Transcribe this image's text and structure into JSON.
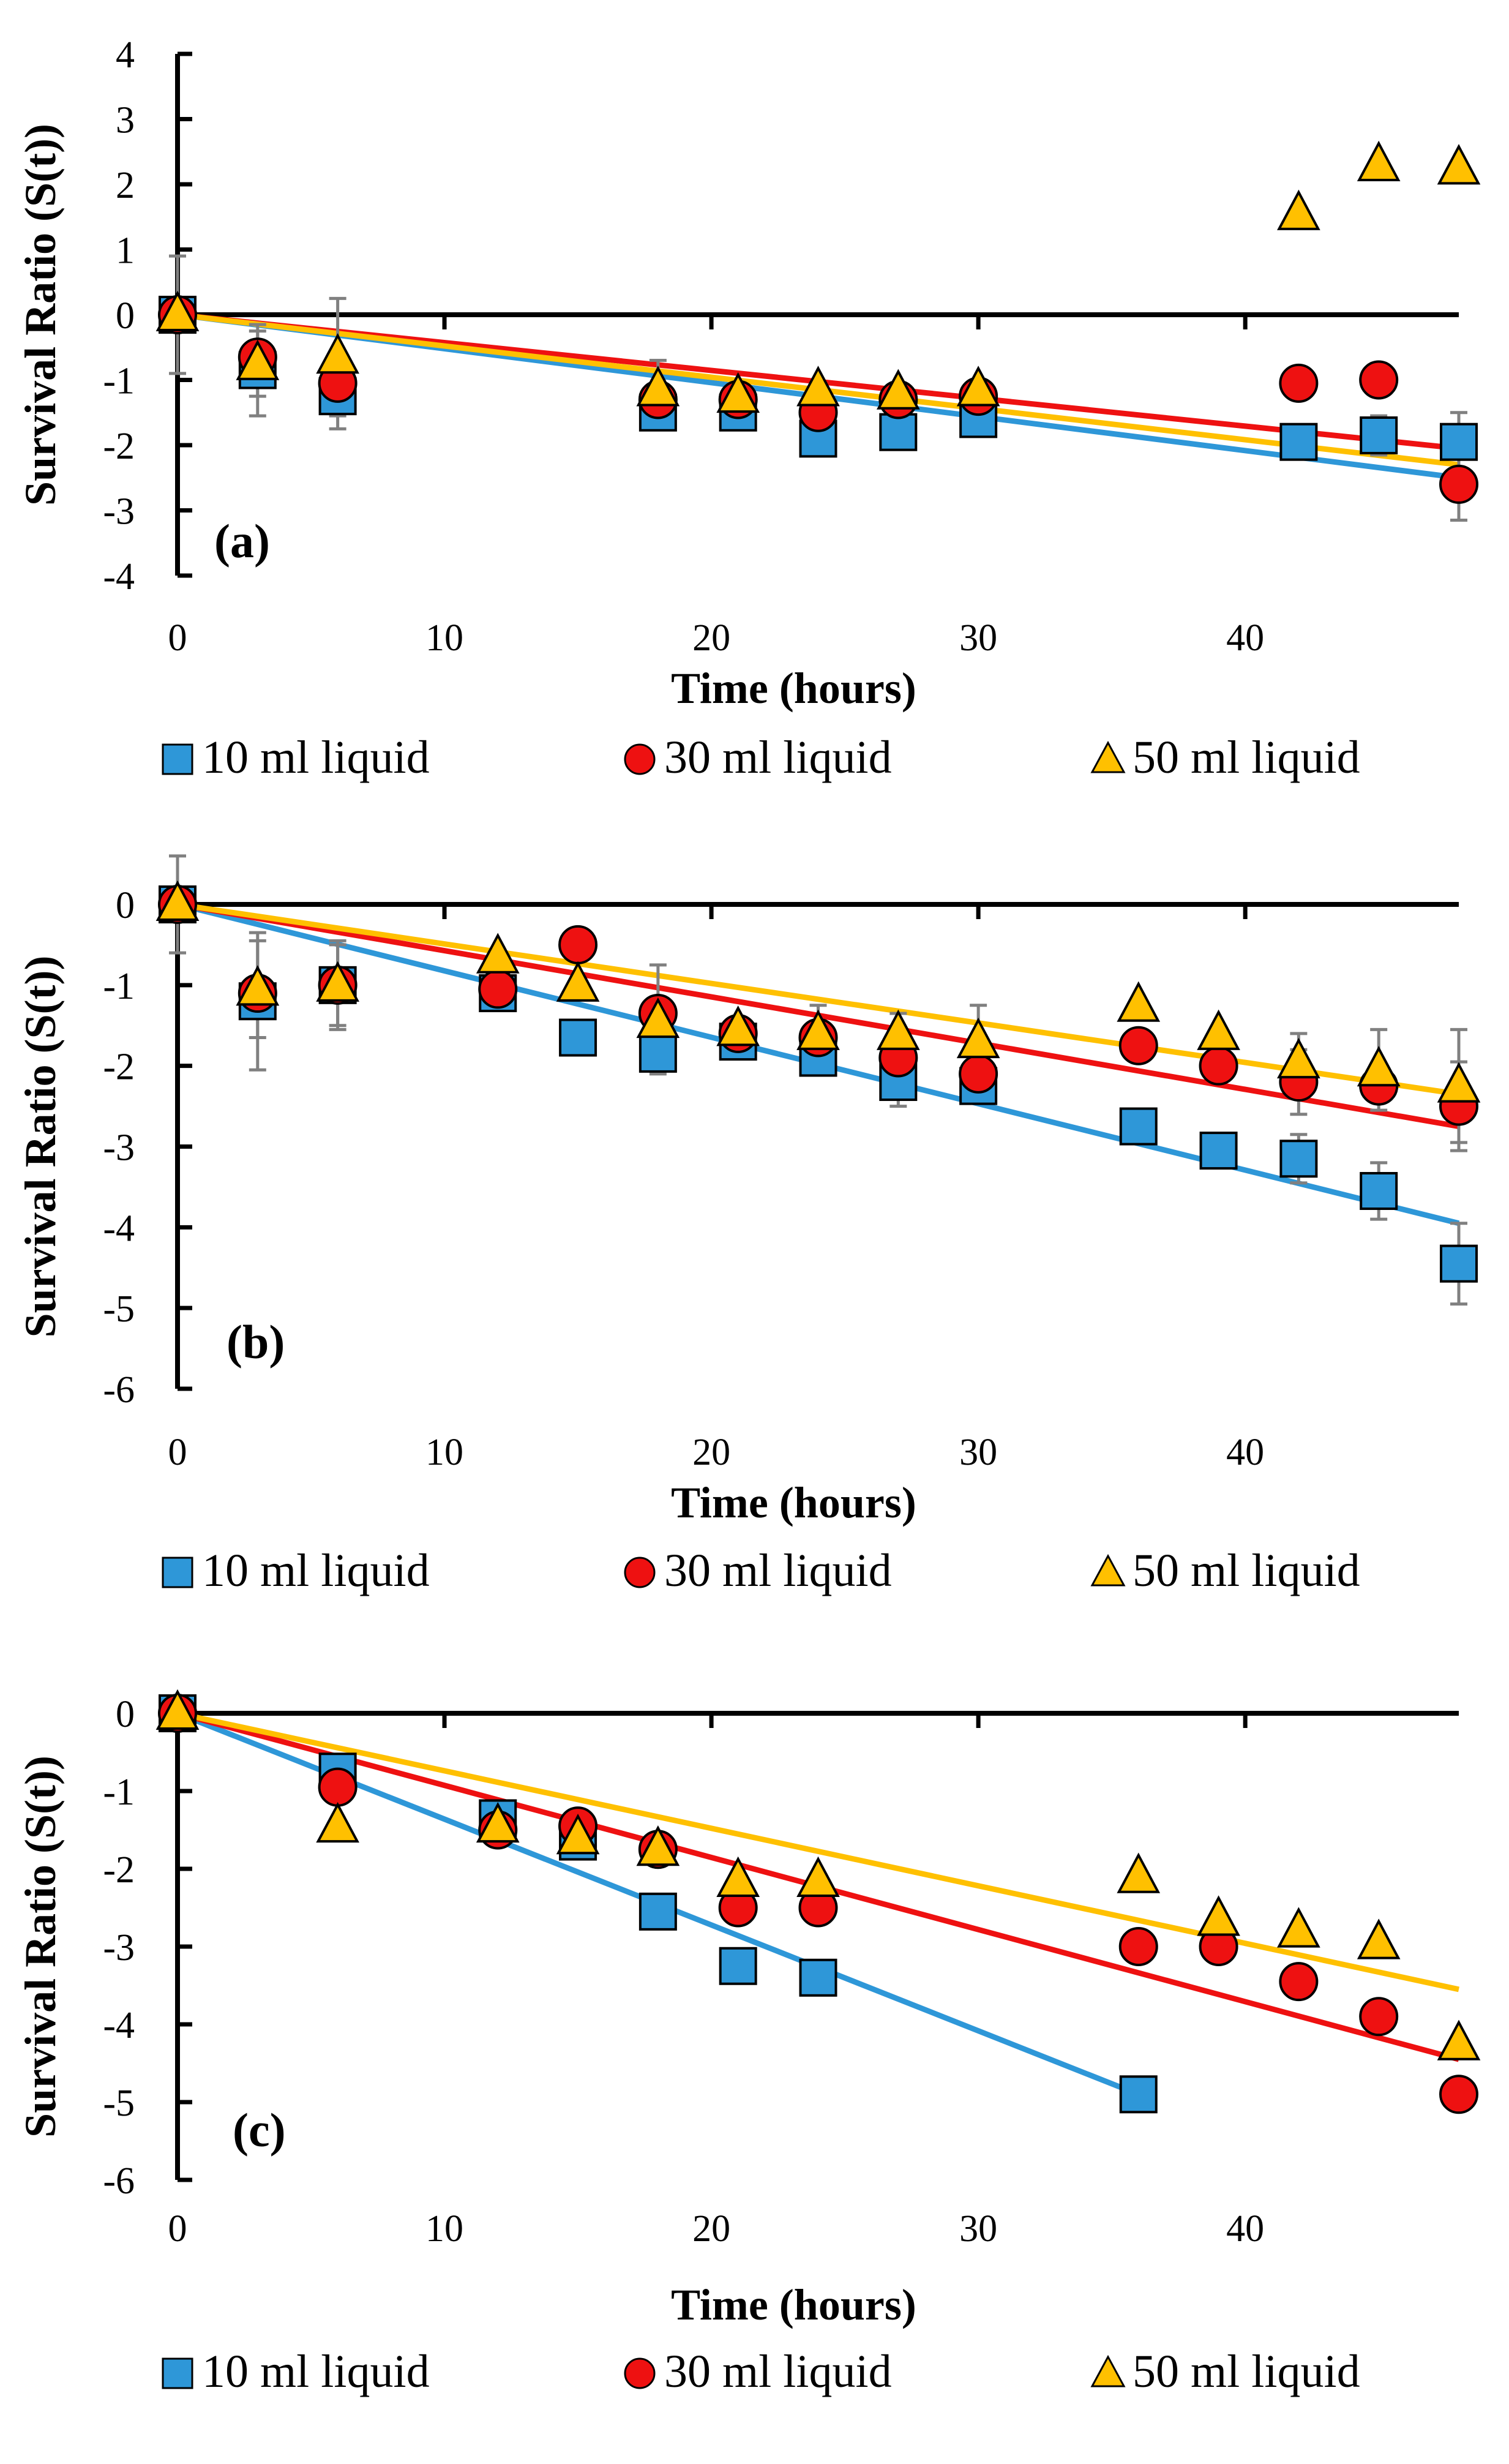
{
  "colors": {
    "s10": "#2E97D8",
    "s30": "#EE1111",
    "s50": "#FFC000",
    "axis": "#000000",
    "errorbar": "#808080"
  },
  "legend": [
    {
      "key": "s10",
      "label": "10 ml liquid",
      "marker": "square"
    },
    {
      "key": "s30",
      "label": "30 ml liquid",
      "marker": "circle"
    },
    {
      "key": "s50",
      "label": "50 ml liquid",
      "marker": "triangle"
    }
  ],
  "chart_data": [
    {
      "type": "scatter",
      "panel": "(a)",
      "xlabel": "Time (hours)",
      "ylabel": "Survival Ratio (S(t))",
      "xlim": [
        0,
        48
      ],
      "ylim": [
        -4,
        4
      ],
      "xticks": [
        0,
        10,
        20,
        30,
        40
      ],
      "yticks": [
        4,
        3,
        2,
        1,
        0,
        -1,
        -2,
        -3,
        -4
      ],
      "series": [
        {
          "name": "10 ml liquid",
          "key": "s10",
          "marker": "square",
          "x": [
            0,
            3,
            6,
            18,
            21,
            24,
            27,
            30,
            42,
            45,
            48
          ],
          "y": [
            0,
            -0.85,
            -1.25,
            -1.5,
            -1.5,
            -1.9,
            -1.8,
            -1.6,
            -1.95,
            -1.85,
            -1.95
          ],
          "err": [
            0.9,
            0.7,
            0.5,
            0.25,
            0.2,
            0.2,
            0.15,
            0.2,
            0.15,
            0.3,
            0.45
          ],
          "fit": [
            [
              0,
              0
            ],
            [
              48,
              -2.5
            ]
          ]
        },
        {
          "name": "30 ml liquid",
          "key": "s30",
          "marker": "circle",
          "x": [
            0,
            3,
            6,
            18,
            21,
            24,
            27,
            30,
            42,
            45,
            48
          ],
          "y": [
            0,
            -0.65,
            -1.05,
            -1.3,
            -1.3,
            -1.5,
            -1.3,
            -1.25,
            -1.05,
            -1.0,
            -2.6
          ],
          "err": [
            0,
            0,
            0,
            0,
            0,
            0,
            0,
            0,
            0,
            0,
            0.55
          ],
          "fit": [
            [
              0,
              0
            ],
            [
              48,
              -2.05
            ]
          ]
        },
        {
          "name": "50 ml liquid",
          "key": "s50",
          "marker": "triangle",
          "x": [
            0,
            3,
            6,
            18,
            21,
            24,
            27,
            30,
            42,
            45,
            48
          ],
          "y": [
            0,
            -0.75,
            -0.65,
            -1.15,
            -1.25,
            -1.15,
            -1.2,
            -1.15,
            1.55,
            2.3,
            2.25
          ],
          "err": [
            0,
            0.5,
            0.9,
            0.45,
            0,
            0,
            0,
            0,
            0,
            0,
            0
          ],
          "fit": [
            [
              0,
              0
            ],
            [
              48,
              -2.3
            ]
          ]
        }
      ]
    },
    {
      "type": "scatter",
      "panel": "(b)",
      "xlabel": "Time (hours)",
      "ylabel": "Survival Ratio (S(t))",
      "xlim": [
        0,
        48
      ],
      "ylim": [
        -6,
        0
      ],
      "xticks": [
        0,
        10,
        20,
        30,
        40
      ],
      "yticks": [
        0,
        -1,
        -2,
        -3,
        -4,
        -5,
        -6
      ],
      "series": [
        {
          "name": "10 ml liquid",
          "key": "s10",
          "marker": "square",
          "x": [
            0,
            3,
            6,
            12,
            15,
            18,
            21,
            24,
            27,
            30,
            36,
            39,
            42,
            45,
            48
          ],
          "y": [
            0,
            -1.2,
            -1.0,
            -1.1,
            -1.65,
            -1.85,
            -1.7,
            -1.9,
            -2.2,
            -2.25,
            -2.75,
            -3.05,
            -3.15,
            -3.55,
            -4.45
          ],
          "err": [
            0.6,
            0.85,
            0.5,
            0,
            0,
            0.25,
            0,
            0.2,
            0.3,
            0,
            0,
            0,
            0.3,
            0.35,
            0.5
          ],
          "fit": [
            [
              0,
              0
            ],
            [
              48,
              -3.95
            ]
          ]
        },
        {
          "name": "30 ml liquid",
          "key": "s30",
          "marker": "circle",
          "x": [
            0,
            3,
            6,
            12,
            15,
            18,
            21,
            24,
            27,
            30,
            36,
            39,
            42,
            45,
            48
          ],
          "y": [
            0,
            -1.1,
            -1.0,
            -1.05,
            -0.5,
            -1.35,
            -1.6,
            -1.65,
            -1.9,
            -2.1,
            -1.75,
            -2.0,
            -2.2,
            -2.25,
            -2.5
          ],
          "err": [
            0,
            0,
            0,
            0,
            0,
            0.6,
            0,
            0,
            0,
            0,
            0,
            0,
            0.4,
            0,
            0.55
          ],
          "fit": [
            [
              0,
              0
            ],
            [
              48,
              -2.75
            ]
          ]
        },
        {
          "name": "50 ml liquid",
          "key": "s50",
          "marker": "triangle",
          "x": [
            0,
            3,
            6,
            12,
            15,
            18,
            21,
            24,
            27,
            30,
            36,
            39,
            42,
            45,
            48
          ],
          "y": [
            0,
            -1.05,
            -1.0,
            -0.65,
            -1.0,
            -1.45,
            -1.55,
            -1.6,
            -1.6,
            -1.7,
            -1.25,
            -1.6,
            -1.95,
            -2.05,
            -2.25
          ],
          "err": [
            0,
            0.6,
            0.55,
            0,
            0,
            0,
            0,
            0.35,
            0.25,
            0.45,
            0,
            0,
            0.35,
            0.5,
            0.7
          ],
          "fit": [
            [
              0,
              0
            ],
            [
              48,
              -2.35
            ]
          ]
        }
      ]
    },
    {
      "type": "scatter",
      "panel": "(c)",
      "xlabel": "Time (hours)",
      "ylabel": "Survival Ratio (S(t))",
      "xlim": [
        0,
        48
      ],
      "ylim": [
        -6,
        0
      ],
      "xticks": [
        0,
        10,
        20,
        30,
        40
      ],
      "yticks": [
        0,
        -1,
        -2,
        -3,
        -4,
        -5,
        -6
      ],
      "series": [
        {
          "name": "10 ml liquid",
          "key": "s10",
          "marker": "square",
          "x": [
            0,
            6,
            12,
            15,
            18,
            21,
            24,
            36
          ],
          "y": [
            0,
            -0.75,
            -1.35,
            -1.65,
            -2.55,
            -3.25,
            -3.4,
            -4.9
          ],
          "err": [
            0,
            0,
            0,
            0,
            0,
            0,
            0,
            0
          ],
          "fit": [
            [
              0,
              0
            ],
            [
              36,
              -4.9
            ]
          ]
        },
        {
          "name": "30 ml liquid",
          "key": "s30",
          "marker": "circle",
          "x": [
            0,
            6,
            12,
            15,
            18,
            21,
            24,
            36,
            39,
            42,
            45,
            48
          ],
          "y": [
            0,
            -0.95,
            -1.5,
            -1.45,
            -1.75,
            -2.5,
            -2.5,
            -3.0,
            -3.0,
            -3.45,
            -3.9,
            -4.9
          ],
          "err": [
            0,
            0,
            0,
            0,
            0,
            0,
            0,
            0,
            0,
            0,
            0,
            0
          ],
          "fit": [
            [
              0,
              0
            ],
            [
              48,
              -4.45
            ]
          ]
        },
        {
          "name": "50 ml liquid",
          "key": "s50",
          "marker": "triangle",
          "x": [
            0,
            6,
            12,
            15,
            18,
            21,
            24,
            36,
            39,
            42,
            45,
            48
          ],
          "y": [
            0,
            -1.45,
            -1.45,
            -1.6,
            -1.75,
            -2.15,
            -2.15,
            -2.1,
            -2.65,
            -2.8,
            -2.95,
            -4.25
          ],
          "err": [
            0,
            0,
            0,
            0,
            0,
            0,
            0,
            0,
            0,
            0,
            0,
            0
          ],
          "fit": [
            [
              0,
              0
            ],
            [
              48,
              -3.55
            ]
          ]
        }
      ]
    }
  ]
}
